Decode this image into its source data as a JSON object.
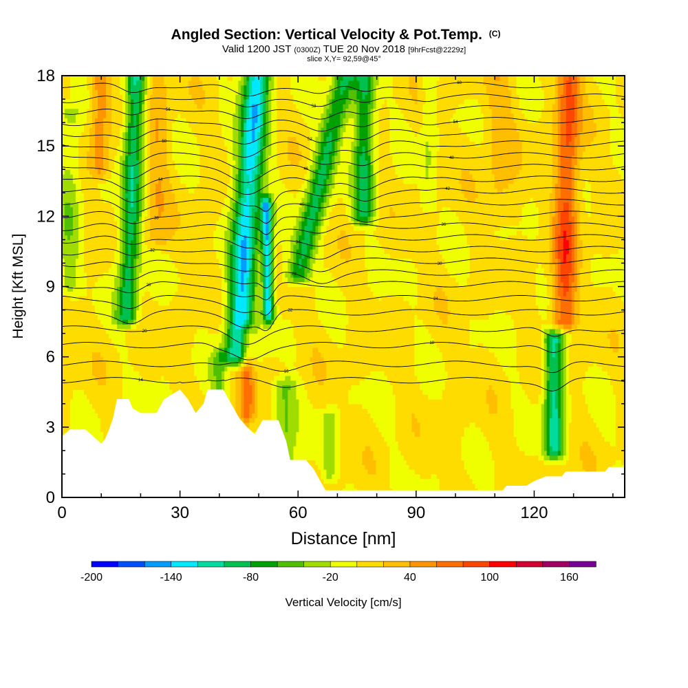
{
  "header": {
    "title_main": "Angled Section: Vertical Velocity & Pot.Temp.",
    "title_suffix": "(C)",
    "valid_prefix": "Valid 1200 JST",
    "valid_utc": "(0300Z)",
    "valid_date": "TUE 20 Nov 2018",
    "forecast_tag": "[9hrFcst@2229z]",
    "slice_info": "slice X,Y= 92,59@45°"
  },
  "chart_data": {
    "type": "heatmap",
    "xlabel": "Distance [nm]",
    "ylabel": "Height [Kft MSL]",
    "xlim": [
      0,
      143
    ],
    "ylim": [
      0,
      18
    ],
    "x_ticks": [
      0,
      30,
      60,
      90,
      120
    ],
    "y_ticks": [
      0,
      3,
      6,
      9,
      12,
      15,
      18
    ],
    "colorbar": {
      "label": "Vertical Velocity [cm/s]",
      "tick_values": [
        -200,
        -140,
        -80,
        -20,
        40,
        100,
        160
      ],
      "min": -200,
      "max": 180,
      "step": 20,
      "colors": [
        "#0000ff",
        "#0050ff",
        "#009cff",
        "#00e8ff",
        "#00dca0",
        "#00c050",
        "#00a000",
        "#50c000",
        "#a0dc00",
        "#f0ff00",
        "#ffdc00",
        "#ffbe00",
        "#ff9600",
        "#ff6e00",
        "#ff4600",
        "#ff0000",
        "#d20032",
        "#a00064",
        "#780096"
      ]
    },
    "terrain": [
      [
        0,
        2.6
      ],
      [
        2,
        2.9
      ],
      [
        6,
        2.9
      ],
      [
        8,
        2.6
      ],
      [
        10,
        2.3
      ],
      [
        11,
        2.5
      ],
      [
        12,
        2.9
      ],
      [
        13,
        3.4
      ],
      [
        14,
        4.2
      ],
      [
        17,
        4.2
      ],
      [
        18,
        3.8
      ],
      [
        20,
        3.6
      ],
      [
        24,
        3.6
      ],
      [
        26,
        4.2
      ],
      [
        30,
        4.6
      ],
      [
        32,
        4.2
      ],
      [
        34,
        3.6
      ],
      [
        36,
        4.0
      ],
      [
        37,
        4.6
      ],
      [
        41,
        4.6
      ],
      [
        43,
        4.0
      ],
      [
        45,
        3.4
      ],
      [
        47,
        3.0
      ],
      [
        49,
        2.7
      ],
      [
        51,
        3.3
      ],
      [
        55,
        3.3
      ],
      [
        57,
        2.4
      ],
      [
        58,
        1.6
      ],
      [
        62,
        1.6
      ],
      [
        64,
        1.2
      ],
      [
        66,
        0.6
      ],
      [
        67,
        0.3
      ],
      [
        112,
        0.3
      ],
      [
        113,
        0.5
      ],
      [
        118,
        0.5
      ],
      [
        120,
        0.7
      ],
      [
        123,
        0.9
      ],
      [
        127,
        0.9
      ],
      [
        128,
        1.1
      ],
      [
        138,
        1.1
      ],
      [
        139,
        1.3
      ],
      [
        143,
        1.3
      ]
    ],
    "updraft_bands": [
      {
        "x": 16.5,
        "lean": 2.5,
        "bottom": 7.7,
        "top": 18,
        "peak": -100,
        "width": 2.6
      },
      {
        "x": 44.5,
        "lean": 5.0,
        "bottom": 6.0,
        "top": 18,
        "peak": -140,
        "width": 3.4
      },
      {
        "x": 52.5,
        "lean": -0.5,
        "bottom": 7.8,
        "top": 12.5,
        "peak": -140,
        "width": 1.4
      },
      {
        "x": 60.0,
        "lean": 12.0,
        "bottom": 9.5,
        "top": 18,
        "peak": -90,
        "width": 3.0
      },
      {
        "x": 76.5,
        "lean": 0.5,
        "bottom": 12.0,
        "top": 18,
        "peak": -90,
        "width": 2.6
      },
      {
        "x": 125.0,
        "lean": 0.0,
        "bottom": 2.0,
        "top": 6.8,
        "peak": -110,
        "width": 2.4
      },
      {
        "x": 40.0,
        "lean": 0.0,
        "bottom": 4.2,
        "top": 6.0,
        "peak": -40,
        "width": 2.0
      },
      {
        "x": 56.5,
        "lean": 0.0,
        "bottom": 1.5,
        "top": 4.8,
        "peak": -50,
        "width": 3.0
      },
      {
        "x": 68.0,
        "lean": 0.0,
        "bottom": 1.0,
        "top": 3.5,
        "peak": -40,
        "width": 1.8
      },
      {
        "x": 2.0,
        "lean": 0.0,
        "bottom": 9.0,
        "top": 16.5,
        "peak": -35,
        "width": 3.0
      },
      {
        "x": 93.0,
        "lean": 0.0,
        "bottom": 12.5,
        "top": 18,
        "peak": -25,
        "width": 1.8
      }
    ],
    "downdraft_bands": [
      {
        "x": 9.5,
        "lean": 0.0,
        "bottom": 14.0,
        "top": 18,
        "peak": 50,
        "width": 2.4
      },
      {
        "x": 127.5,
        "lean": 1.5,
        "bottom": 7.5,
        "top": 18,
        "peak": 80,
        "width": 3.0
      },
      {
        "x": 47.0,
        "lean": 0.0,
        "bottom": 3.5,
        "top": 7.0,
        "peak": 60,
        "width": 2.0
      },
      {
        "x": 24.0,
        "lean": 0.0,
        "bottom": 11.0,
        "top": 18,
        "peak": 30,
        "width": 3.0
      },
      {
        "x": 111.0,
        "lean": 0.0,
        "bottom": 12.0,
        "top": 18,
        "peak": 25,
        "width": 4.0
      }
    ],
    "isentropes": [
      {
        "label": "14",
        "base": 5.0
      },
      {
        "label": "16",
        "base": 5.7
      },
      {
        "label": "18",
        "base": 6.5
      },
      {
        "label": "20",
        "base": 7.2
      },
      {
        "label": "22",
        "base": 7.9
      },
      {
        "label": "24",
        "base": 8.5
      },
      {
        "label": "26",
        "base": 9.1
      },
      {
        "label": "28",
        "base": 9.6
      },
      {
        "label": "30",
        "base": 10.1
      },
      {
        "label": "32",
        "base": 10.6
      },
      {
        "label": "34",
        "base": 11.1
      },
      {
        "label": "36",
        "base": 11.6
      },
      {
        "label": "38",
        "base": 12.1
      },
      {
        "label": "40",
        "base": 12.6
      },
      {
        "label": "42",
        "base": 13.1
      },
      {
        "label": "44",
        "base": 13.6
      },
      {
        "label": "46",
        "base": 14.1
      },
      {
        "label": "48",
        "base": 14.6
      },
      {
        "label": "50",
        "base": 15.1
      },
      {
        "label": "52",
        "base": 15.6
      },
      {
        "label": "54",
        "base": 16.1
      },
      {
        "label": "56",
        "base": 16.6
      },
      {
        "label": "58",
        "base": 17.1
      },
      {
        "label": "60",
        "base": 17.6
      }
    ]
  }
}
